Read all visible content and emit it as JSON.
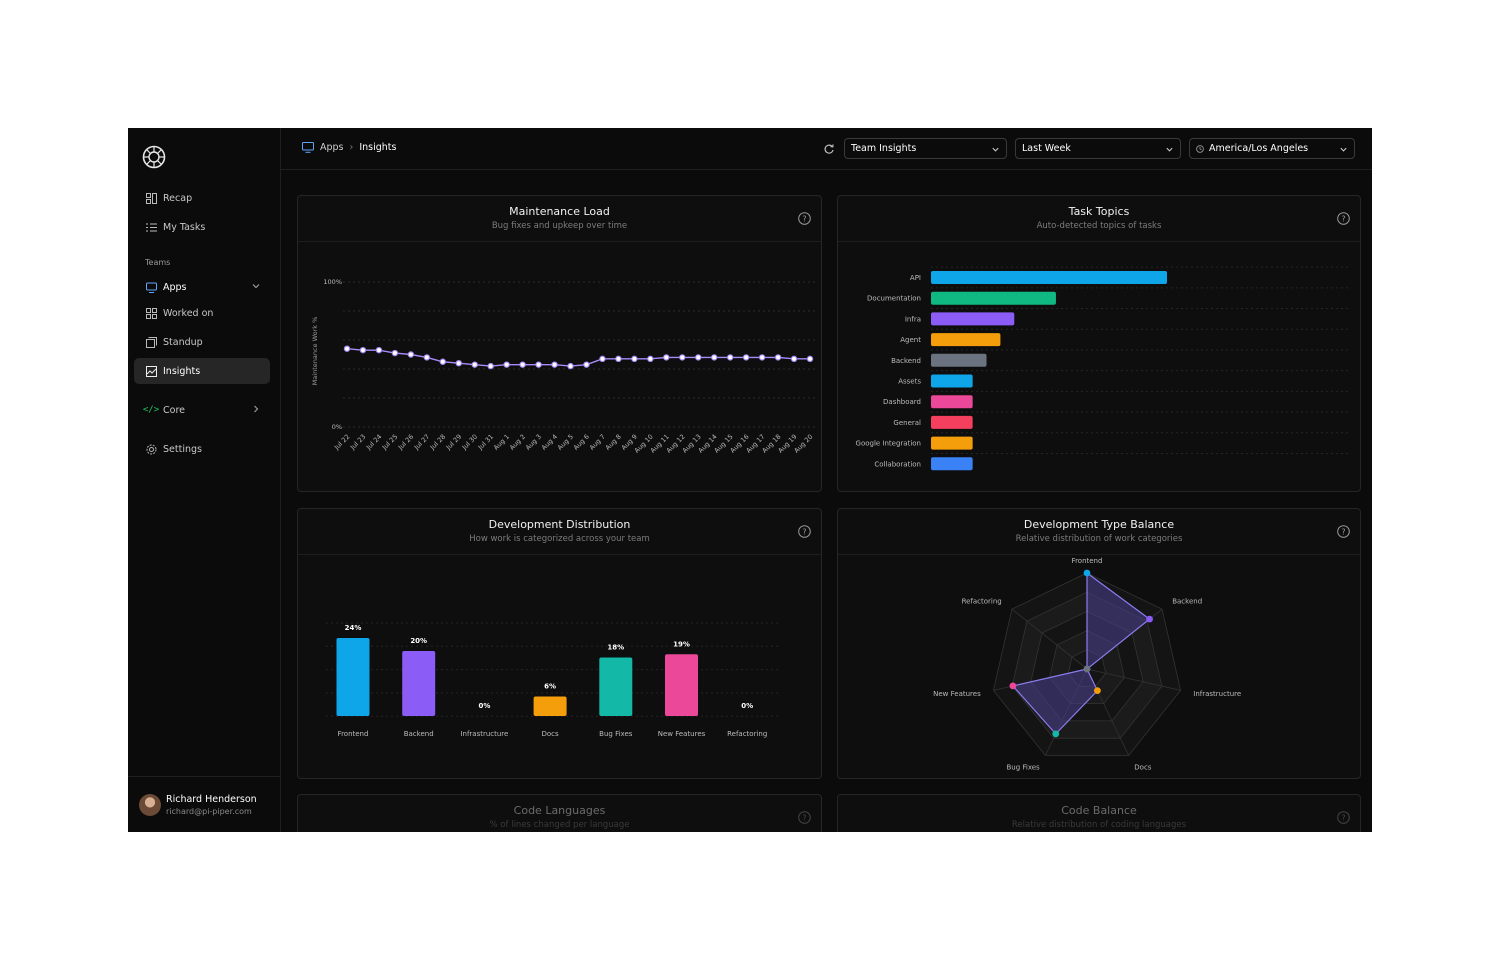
{
  "breadcrumb": {
    "parent": "Apps",
    "current": "Insights"
  },
  "selects": {
    "view": "Team Insights",
    "range": "Last Week",
    "timezone": "America/Los Angeles"
  },
  "sidebar": {
    "items": [
      {
        "label": "Recap",
        "icon": "recap-icon"
      },
      {
        "label": "My Tasks",
        "icon": "list-icon"
      }
    ],
    "teams_label": "Teams",
    "team_items": [
      {
        "label": "Apps",
        "icon": "monitor-icon"
      },
      {
        "label": "Worked on",
        "icon": "grid-icon"
      },
      {
        "label": "Standup",
        "icon": "copy-icon"
      },
      {
        "label": "Insights",
        "icon": "chart-image-icon"
      }
    ],
    "core_label": "Core",
    "settings_label": "Settings"
  },
  "user": {
    "name": "Richard Henderson",
    "email": "richard@pi-piper.com"
  },
  "panels": {
    "maintenance": {
      "title": "Maintenance Load",
      "subtitle": "Bug fixes and upkeep over time"
    },
    "topics": {
      "title": "Task Topics",
      "subtitle": "Auto-detected topics of tasks"
    },
    "distribution": {
      "title": "Development Distribution",
      "subtitle": "How work is categorized across your team"
    },
    "balance": {
      "title": "Development Type Balance",
      "subtitle": "Relative distribution of work categories"
    },
    "languages": {
      "title": "Code Languages",
      "subtitle": "% of lines changed per language"
    },
    "code_balance": {
      "title": "Code Balance",
      "subtitle": "Relative distribution of coding languages"
    }
  },
  "colors": {
    "accent_purple": "#a78bfa",
    "radar_fill": "#4a3f8f"
  },
  "chart_data": [
    {
      "type": "line",
      "ylabel": "Maintenance Work %",
      "ylim": [
        0,
        100
      ],
      "ytick_labels": [
        "100%",
        "0%"
      ],
      "x": [
        "Jul 22",
        "Jul 23",
        "Jul 24",
        "Jul 25",
        "Jul 26",
        "Jul 27",
        "Jul 28",
        "Jul 29",
        "Jul 30",
        "Jul 31",
        "Aug 1",
        "Aug 2",
        "Aug 3",
        "Aug 4",
        "Aug 5",
        "Aug 6",
        "Aug 7",
        "Aug 8",
        "Aug 9",
        "Aug 10",
        "Aug 11",
        "Aug 12",
        "Aug 13",
        "Aug 14",
        "Aug 15",
        "Aug 16",
        "Aug 17",
        "Aug 18",
        "Aug 19",
        "Aug 20"
      ],
      "values": [
        54,
        53,
        53,
        51,
        50,
        48,
        45,
        44,
        43,
        42,
        43,
        43,
        43,
        43,
        42,
        43,
        47,
        47,
        47,
        47,
        48,
        48,
        48,
        48,
        48,
        48,
        48,
        48,
        47,
        47
      ],
      "color": "#a78bfa"
    },
    {
      "type": "bar",
      "orientation": "horizontal",
      "categories": [
        "API",
        "Documentation",
        "Infra",
        "Agent",
        "Backend",
        "Assets",
        "Dashboard",
        "General",
        "Google Integration",
        "Collaboration"
      ],
      "values": [
        17,
        9,
        6,
        5,
        4,
        3,
        3,
        3,
        3,
        3
      ],
      "colors": [
        "#0ea5e9",
        "#10b981",
        "#8b5cf6",
        "#f59e0b",
        "#6b7280",
        "#0ea5e9",
        "#ec4899",
        "#f43f5e",
        "#f59e0b",
        "#3b82f6"
      ]
    },
    {
      "type": "bar",
      "categories": [
        "Frontend",
        "Backend",
        "Infrastructure",
        "Docs",
        "Bug Fixes",
        "New Features",
        "Refactoring"
      ],
      "values": [
        24,
        20,
        0,
        6,
        18,
        19,
        0
      ],
      "labels": [
        "24%",
        "20%",
        "0%",
        "6%",
        "18%",
        "19%",
        "0%"
      ],
      "colors": [
        "#0ea5e9",
        "#8b5cf6",
        "#6b7280",
        "#f59e0b",
        "#14b8a6",
        "#ec4899",
        "#6b7280"
      ]
    },
    {
      "type": "radar",
      "categories": [
        "Frontend",
        "Backend",
        "Infrastructure",
        "Docs",
        "Bug Fixes",
        "New Features",
        "Refactoring"
      ],
      "values": [
        24,
        20,
        0,
        6,
        18,
        19,
        0
      ],
      "max": 24,
      "colors": [
        "#0ea5e9",
        "#8b5cf6",
        "#6b7280",
        "#f59e0b",
        "#14b8a6",
        "#ec4899",
        "#6b7280"
      ]
    }
  ]
}
